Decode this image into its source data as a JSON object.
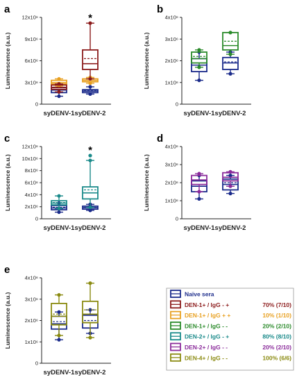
{
  "chart_data": [
    {
      "panel": "a",
      "type": "box",
      "ylabel": "Luminescence (a.u.)",
      "ylim": [
        0,
        12000000
      ],
      "yticks": [
        "0",
        "3x10⁶",
        "6x10⁶",
        "9x10⁶",
        "12x10⁶"
      ],
      "categories": [
        "syDENV-1",
        "syDENV-2"
      ],
      "annotation": "*",
      "boxes": [
        {
          "category": "syDENV-1",
          "group": "Naïve sera",
          "min": 1100000,
          "q1": 1600000,
          "median": 1950000,
          "mean": 1950000,
          "q3": 2300000,
          "max": 2700000,
          "outliers": []
        },
        {
          "category": "syDENV-1",
          "group": "DEN-1+ / IgG + +",
          "min": 2500000,
          "q1": 2800000,
          "median": 3000000,
          "mean": 3000000,
          "q3": 3300000,
          "max": 3500000,
          "outliers": []
        },
        {
          "category": "syDENV-1",
          "group": "DEN-1+ / IgG - +",
          "min": 1700000,
          "q1": 2050000,
          "median": 2300000,
          "mean": 2350000,
          "q3": 2650000,
          "max": 2800000,
          "outliers": []
        },
        {
          "category": "syDENV-2",
          "group": "Naïve sera",
          "min": 1400000,
          "q1": 1600000,
          "median": 1800000,
          "mean": 1850000,
          "q3": 2000000,
          "max": 2400000,
          "outliers": []
        },
        {
          "category": "syDENV-2",
          "group": "DEN-1+ / IgG + +",
          "min": 2900000,
          "q1": 3100000,
          "median": 3300000,
          "mean": 3300000,
          "q3": 3500000,
          "max": 3700000,
          "outliers": []
        },
        {
          "category": "syDENV-2",
          "group": "DEN-1+ / IgG - +",
          "min": 3500000,
          "q1": 4800000,
          "median": 5600000,
          "mean": 6300000,
          "q3": 7500000,
          "max": 11200000,
          "outliers": []
        }
      ]
    },
    {
      "panel": "b",
      "type": "box",
      "ylabel": "Luminescence (a.u.)",
      "ylim": [
        0,
        4000000
      ],
      "yticks": [
        "0",
        "1x10⁶",
        "2x10⁶",
        "3x10⁶",
        "4x10⁶"
      ],
      "categories": [
        "syDENV-1",
        "syDENV-2"
      ],
      "boxes": [
        {
          "category": "syDENV-1",
          "group": "Naïve sera",
          "min": 1100000,
          "q1": 1500000,
          "median": 1800000,
          "mean": 1900000,
          "q3": 2100000,
          "max": 2400000,
          "outliers": []
        },
        {
          "category": "syDENV-1",
          "group": "DEN-1+ / IgG - -",
          "min": 1700000,
          "q1": 1900000,
          "median": 2100000,
          "mean": 2200000,
          "q3": 2400000,
          "max": 2500000,
          "outliers": []
        },
        {
          "category": "syDENV-2",
          "group": "Naïve sera",
          "min": 1400000,
          "q1": 1600000,
          "median": 1900000,
          "mean": 1950000,
          "q3": 2150000,
          "max": 2400000,
          "outliers": []
        },
        {
          "category": "syDENV-2",
          "group": "DEN-1+ / IgG - -",
          "min": 2300000,
          "q1": 2500000,
          "median": 2700000,
          "mean": 2900000,
          "q3": 3300000,
          "max": 3300000,
          "outliers": []
        }
      ]
    },
    {
      "panel": "c",
      "type": "box",
      "ylabel": "Luminescence (a.u.)",
      "ylim": [
        0,
        12000000
      ],
      "yticks": [
        "0",
        "2x10⁶",
        "4x10⁶",
        "6x10⁶",
        "8x10⁶",
        "10x10⁶",
        "12x10⁶"
      ],
      "categories": [
        "syDENV-1",
        "syDENV-2"
      ],
      "annotation": "*",
      "boxes": [
        {
          "category": "syDENV-1",
          "group": "Naïve sera",
          "min": 1100000,
          "q1": 1500000,
          "median": 1800000,
          "mean": 1900000,
          "q3": 2200000,
          "max": 2600000,
          "outliers": []
        },
        {
          "category": "syDENV-1",
          "group": "DEN-2+ / IgG - +",
          "min": 1700000,
          "q1": 2300000,
          "median": 2600000,
          "mean": 2700000,
          "q3": 3000000,
          "max": 3800000,
          "outliers": []
        },
        {
          "category": "syDENV-2",
          "group": "Naïve sera",
          "min": 1400000,
          "q1": 1600000,
          "median": 1850000,
          "mean": 1900000,
          "q3": 2100000,
          "max": 2400000,
          "outliers": []
        },
        {
          "category": "syDENV-2",
          "group": "DEN-2+ / IgG - +",
          "min": 1900000,
          "q1": 3300000,
          "median": 4300000,
          "mean": 4800000,
          "q3": 5300000,
          "max": 9700000,
          "outliers": [
            10500000
          ]
        }
      ]
    },
    {
      "panel": "d",
      "type": "box",
      "ylabel": "Luminescence (a.u.)",
      "ylim": [
        0,
        4000000
      ],
      "yticks": [
        "0",
        "1x10⁶",
        "2x10⁶",
        "3x10⁶",
        "4x10⁶"
      ],
      "categories": [
        "syDENV-1",
        "syDENV-2"
      ],
      "boxes": [
        {
          "category": "syDENV-1",
          "group": "Naïve sera",
          "min": 1100000,
          "q1": 1500000,
          "median": 1800000,
          "mean": 1900000,
          "q3": 2100000,
          "max": 2400000,
          "outliers": []
        },
        {
          "category": "syDENV-1",
          "group": "DEN-2+ / IgG - -",
          "min": 1500000,
          "q1": 1900000,
          "median": 2150000,
          "mean": 2150000,
          "q3": 2400000,
          "max": 2500000,
          "outliers": []
        },
        {
          "category": "syDENV-2",
          "group": "Naïve sera",
          "min": 1400000,
          "q1": 1600000,
          "median": 1900000,
          "mean": 2000000,
          "q3": 2200000,
          "max": 2400000,
          "outliers": []
        },
        {
          "category": "syDENV-2",
          "group": "DEN-2+ / IgG - -",
          "min": 1800000,
          "q1": 2100000,
          "median": 2300000,
          "mean": 2300000,
          "q3": 2550000,
          "max": 2600000,
          "outliers": []
        }
      ]
    },
    {
      "panel": "e",
      "type": "box",
      "ylabel": "Luminescence (a.u.)",
      "ylim": [
        0,
        4000000
      ],
      "yticks": [
        "0",
        "1x10⁶",
        "2x10⁶",
        "3x10⁶",
        "4x10⁶"
      ],
      "categories": [
        "syDENV-1",
        "syDENV-2"
      ],
      "boxes": [
        {
          "category": "syDENV-1",
          "group": "Naïve sera",
          "min": 1100000,
          "q1": 1600000,
          "median": 1850000,
          "mean": 1950000,
          "q3": 2200000,
          "max": 2400000,
          "outliers": []
        },
        {
          "category": "syDENV-1",
          "group": "DEN-4+ / IgG - -",
          "min": 1300000,
          "q1": 1800000,
          "median": 2200000,
          "mean": 2300000,
          "q3": 2800000,
          "max": 3200000,
          "outliers": []
        },
        {
          "category": "syDENV-2",
          "group": "Naïve sera",
          "min": 1400000,
          "q1": 1650000,
          "median": 1900000,
          "mean": 2000000,
          "q3": 2250000,
          "max": 2500000,
          "outliers": []
        },
        {
          "category": "syDENV-2",
          "group": "DEN-4+ / IgG - -",
          "min": 1200000,
          "q1": 1900000,
          "median": 2300000,
          "mean": 2500000,
          "q3": 2900000,
          "max": 3750000,
          "outliers": []
        }
      ]
    }
  ],
  "legend": [
    {
      "label": "Naïve sera",
      "pct": "",
      "color": "#1a2a8a"
    },
    {
      "label": "DEN-1+ / IgG - +",
      "pct": "70% (7/10)",
      "color": "#8b1a1a"
    },
    {
      "label": "DEN-1+ / IgG + +",
      "pct": "10% (1/10)",
      "color": "#e8a020"
    },
    {
      "label": "DEN-1+ / IgG - -",
      "pct": "20% (2/10)",
      "color": "#2a8a2a"
    },
    {
      "label": "DEN-2+ / IgG - +",
      "pct": "80% (8/10)",
      "color": "#1a8a8a"
    },
    {
      "label": "DEN-2+ / IgG - -",
      "pct": "20% (2/10)",
      "color": "#8a2a9a"
    },
    {
      "label": "DEN-4+ / IgG - -",
      "pct": "100% (6/6)",
      "color": "#8a8a10"
    }
  ]
}
